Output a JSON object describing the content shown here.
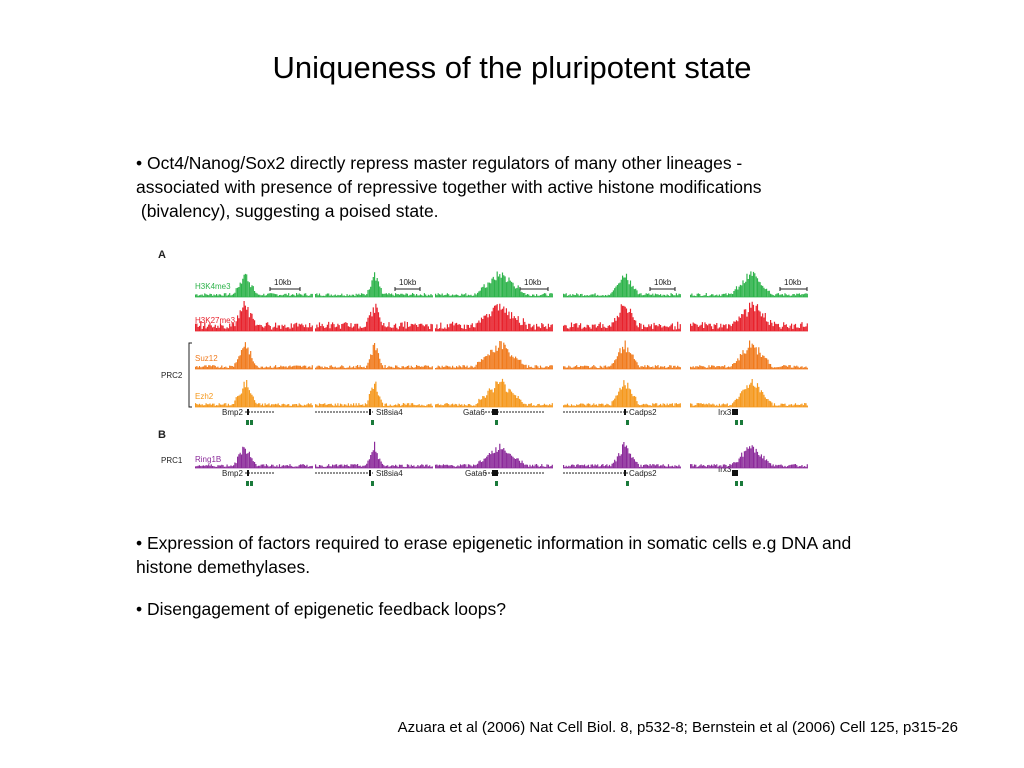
{
  "slide": {
    "title": "Uniqueness of the pluripotent state",
    "bullets": [
      {
        "lines": [
          "• Oct4/Nanog/Sox2 directly repress master regulators of many other lineages -",
          "associated with presence of repressive together with active histone modifications",
          " (bivalency), suggesting a poised state."
        ]
      },
      {
        "lines": [
          "• Expression of factors required to erase epigenetic information in somatic cells e.g DNA and",
          "histone demethylases."
        ]
      },
      {
        "lines": [
          "• Disengagement of epigenetic feedback loops?"
        ]
      }
    ],
    "citation": "Azuara et al (2006) Nat Cell Biol. 8, p532-8; Bernstein et al (2006) Cell 125, p315-26"
  },
  "figure": {
    "panel_a_label": "A",
    "panel_b_label": "B",
    "group_prc2": "PRC2",
    "group_prc1": "PRC1",
    "scale_label": "10kb",
    "tracks_a": [
      {
        "label": "H3K4me3",
        "color": "#2db34a"
      },
      {
        "label": "H3K27me3",
        "color": "#e8222c"
      },
      {
        "label": "Suz12",
        "color": "#f07a1c"
      },
      {
        "label": "Ezh2",
        "color": "#f5981c"
      }
    ],
    "track_b": {
      "label": "Ring1B",
      "color": "#8b2a9a"
    },
    "genes": [
      "Bmp2",
      "St8sia4",
      "Gata6",
      "Cadps2",
      "Irx3"
    ],
    "gene_color": "#1a7a3a"
  }
}
